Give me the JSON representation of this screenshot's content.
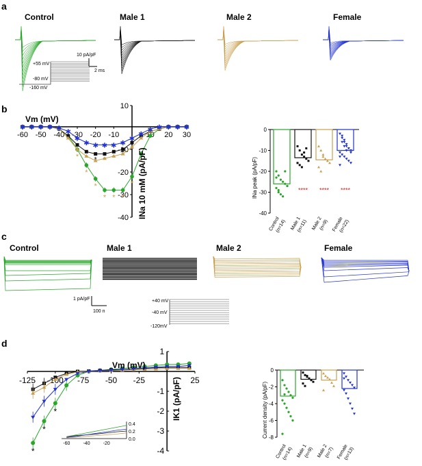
{
  "panels": {
    "a": {
      "label": "a",
      "titles": [
        "Control",
        "Male 1",
        "Male 2",
        "Female"
      ],
      "scale_y": "10 pA/pF",
      "scale_x": "2 ms",
      "protocol": [
        "+55 mV",
        "-80 mV",
        "-160 mV"
      ]
    },
    "b": {
      "label": "b"
    },
    "c": {
      "label": "c",
      "titles": [
        "Control",
        "Male 1",
        "Male 2",
        "Female"
      ],
      "scale_y": "1 pA/pF",
      "scale_x": "100 n",
      "protocol": [
        "+40 mV",
        "-40 mV",
        "-120mV"
      ]
    },
    "d": {
      "label": "d"
    }
  },
  "colors": {
    "control": "#2aa62a",
    "male1": "#111111",
    "male2": "#c8a050",
    "female": "#2233cc",
    "star_red": "#e02020"
  },
  "chart_data": [
    {
      "id": "b-iv",
      "type": "line",
      "xlabel": "Vm (mV)",
      "ylabel": "INa 10 mM (pA/pF)",
      "xlim": [
        -60,
        30
      ],
      "ylim": [
        -40,
        10
      ],
      "x_ticks": [
        "-60",
        "-50",
        "-40",
        "-30",
        "-20",
        "-10",
        "10",
        "20",
        "30"
      ],
      "y_ticks": [
        "10",
        "-10",
        "-20",
        "-30",
        "-40"
      ],
      "x": [
        -60,
        -55,
        -50,
        -45,
        -40,
        -35,
        -30,
        -25,
        -20,
        -15,
        -10,
        -5,
        0,
        5,
        10,
        15,
        20,
        25,
        30
      ],
      "series": [
        {
          "key": "control",
          "values": [
            0,
            0,
            0,
            0,
            -1,
            -4,
            -10,
            -17,
            -23,
            -28,
            -28,
            -28,
            -22,
            -12,
            -4,
            -1,
            0,
            0,
            0
          ]
        },
        {
          "key": "male1",
          "values": [
            0,
            0,
            0,
            0,
            -1,
            -4,
            -8,
            -11,
            -12,
            -12,
            -11,
            -10,
            -7,
            -4,
            -2,
            -1,
            0,
            0,
            0
          ]
        },
        {
          "key": "male2",
          "values": [
            0,
            0,
            0,
            0,
            -1,
            -5,
            -10,
            -13,
            -15,
            -14,
            -13,
            -12,
            -9,
            -5,
            -2,
            -1,
            0,
            0,
            0
          ]
        },
        {
          "key": "female",
          "values": [
            0,
            0,
            0,
            0,
            -0.5,
            -2,
            -5,
            -7,
            -8,
            -8,
            -8,
            -7,
            -5,
            -3,
            -1,
            0,
            0,
            0,
            0
          ]
        }
      ],
      "asterisks": "*"
    },
    {
      "id": "b-peak",
      "type": "bar",
      "ylabel": "INa peak (pA/pF)",
      "ylim": [
        -40,
        0
      ],
      "y_ticks": [
        "0",
        "-10",
        "-20",
        "-30",
        "-40"
      ],
      "categories": [
        "Control",
        "Male 1",
        "Male 2",
        "Female"
      ],
      "n_labels": [
        "(n=14)",
        "(n=11)",
        "(n=9)",
        "(n=22)"
      ],
      "values": [
        -26,
        -13.5,
        -14.5,
        -10
      ],
      "points": [
        [
          -20,
          -22,
          -24,
          -25,
          -26,
          -27,
          -28,
          -30,
          -31,
          -32,
          -20,
          -27,
          -23,
          -29
        ],
        [
          -8,
          -10,
          -12,
          -13,
          -14,
          -15,
          -16,
          -17,
          -18,
          -11,
          -9
        ],
        [
          -8,
          -10,
          -12,
          -14,
          -15,
          -16,
          -18,
          -20,
          -13
        ],
        [
          -2,
          -4,
          -6,
          -8,
          -9,
          -10,
          -11,
          -12,
          -13,
          -14,
          -15,
          -16,
          -17,
          -3,
          -5,
          -7,
          -9,
          -11,
          -13,
          -6,
          -8,
          -10
        ]
      ],
      "significance": [
        "",
        "****",
        "****",
        "****"
      ]
    },
    {
      "id": "d-iv",
      "type": "line",
      "xlabel": "Vm (mV)",
      "ylabel": "IK1 (pA/pF)",
      "xlim": [
        -125,
        25
      ],
      "ylim": [
        -4,
        1
      ],
      "x_ticks": [
        "-125",
        "-100",
        "-75",
        "-50",
        "-25",
        "25"
      ],
      "y_ticks": [
        "1",
        "-1",
        "-2",
        "-3",
        "-4"
      ],
      "x": [
        -120,
        -110,
        -100,
        -90,
        -80,
        -70,
        -60,
        -50,
        -40,
        -30,
        -20,
        -10,
        0,
        10,
        20
      ],
      "series": [
        {
          "key": "control",
          "values": [
            -3.6,
            -2.5,
            -1.6,
            -0.7,
            -0.2,
            0.0,
            0.05,
            0.1,
            0.15,
            0.2,
            0.25,
            0.3,
            0.35,
            0.35,
            0.4
          ]
        },
        {
          "key": "male1",
          "values": [
            -0.9,
            -0.6,
            -0.3,
            -0.1,
            0.0,
            0.02,
            0.05,
            0.08,
            0.1,
            0.12,
            0.15,
            0.18,
            0.2,
            0.2,
            0.2
          ]
        },
        {
          "key": "male2",
          "values": [
            -1.1,
            -0.8,
            -0.4,
            -0.15,
            -0.02,
            0.0,
            0.02,
            0.04,
            0.06,
            0.08,
            0.1,
            0.12,
            0.15,
            0.15,
            0.15
          ]
        },
        {
          "key": "female",
          "values": [
            -2.3,
            -1.5,
            -0.9,
            -0.4,
            -0.1,
            0.0,
            0.03,
            0.06,
            0.1,
            0.14,
            0.18,
            0.22,
            0.25,
            0.25,
            0.3
          ]
        }
      ],
      "inset": {
        "x_ticks": [
          "-60",
          "-40",
          "-20"
        ],
        "y_ticks": [
          "0.4",
          "0.2",
          "0.0"
        ]
      },
      "asterisks": "*"
    },
    {
      "id": "d-density",
      "type": "bar",
      "ylabel": "Current density (pA/pF)",
      "ylim": [
        -8,
        0
      ],
      "y_ticks": [
        "0",
        "-2",
        "-4",
        "-6",
        "-8"
      ],
      "categories": [
        "Control",
        "Male 1",
        "Male 2",
        "Female"
      ],
      "n_labels": [
        "(n=14)",
        "(n=9)",
        "(n=7)",
        "(n=13)"
      ],
      "values": [
        -3.1,
        -1.1,
        -1.2,
        -2.2
      ],
      "points": [
        [
          -1.2,
          -1.8,
          -2.2,
          -2.6,
          -3.0,
          -3.3,
          -3.6,
          -4.0,
          -4.5,
          -5.0,
          -5.5,
          -6.0,
          -7.6,
          -2.9
        ],
        [
          -0.3,
          -0.6,
          -0.8,
          -1.0,
          -1.2,
          -1.4,
          -1.6,
          -1.9,
          -0.7
        ],
        [
          -0.4,
          -0.7,
          -0.9,
          -1.1,
          -1.5,
          -1.9,
          -2.4
        ],
        [
          -0.4,
          -0.8,
          -1.2,
          -1.5,
          -1.8,
          -2.1,
          -2.4,
          -2.8,
          -3.4,
          -4.0,
          -4.6,
          -5.2,
          -1.0
        ]
      ]
    }
  ]
}
